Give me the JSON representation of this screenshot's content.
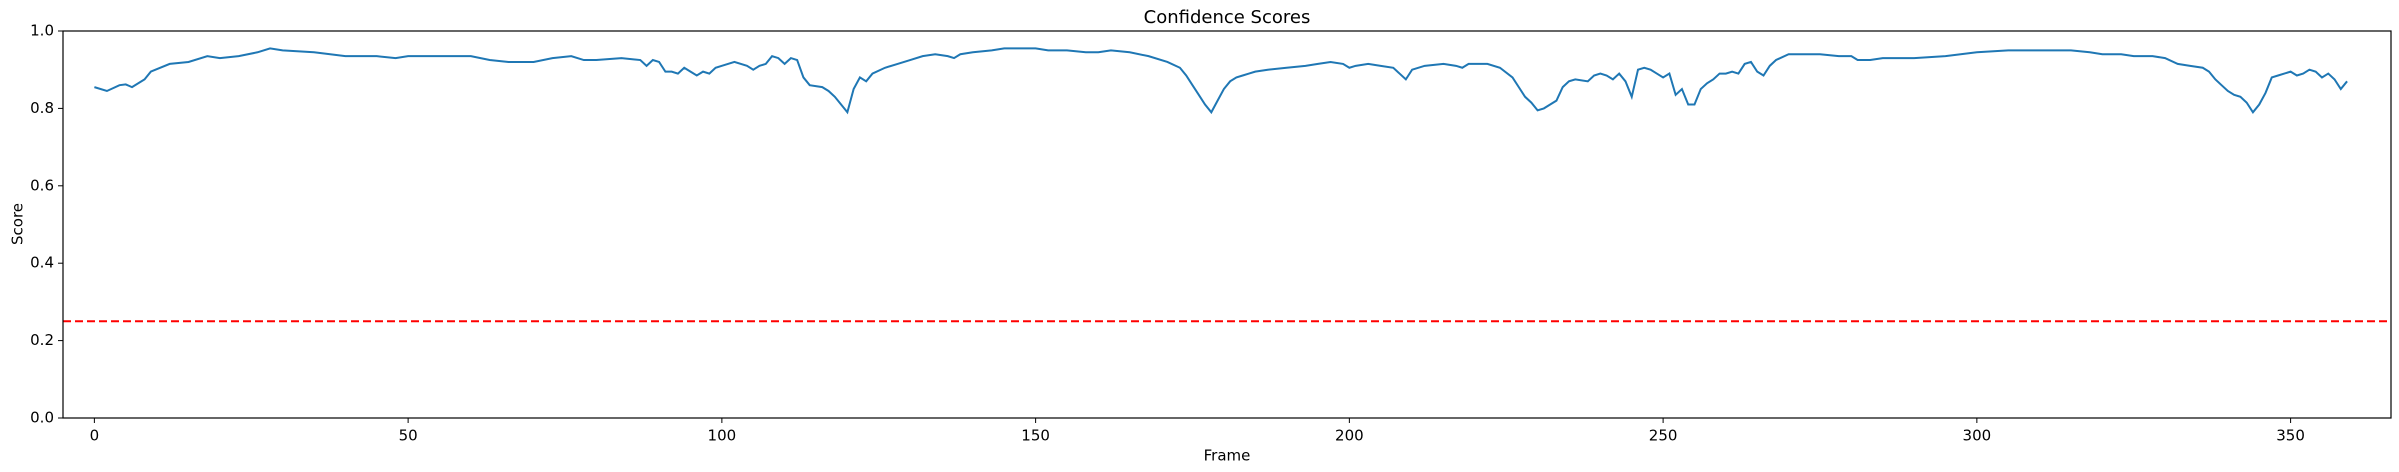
{
  "chart_data": {
    "type": "line",
    "title": "Confidence Scores",
    "x_label": "Frame",
    "y_label": "Score",
    "x": [
      0,
      2,
      4,
      5,
      6,
      8,
      9,
      12,
      15,
      18,
      20,
      23,
      26,
      28,
      30,
      35,
      40,
      45,
      48,
      50,
      55,
      60,
      63,
      66,
      70,
      73,
      76,
      78,
      80,
      84,
      87,
      88,
      89,
      90,
      91,
      92,
      93,
      94,
      95,
      96,
      97,
      98,
      99,
      100,
      102,
      104,
      105,
      106,
      107,
      108,
      109,
      110,
      111,
      112,
      113,
      114,
      116,
      117,
      118,
      119,
      120,
      121,
      122,
      123,
      124,
      126,
      128,
      130,
      132,
      134,
      136,
      137,
      138,
      140,
      143,
      145,
      148,
      150,
      152,
      155,
      158,
      160,
      162,
      165,
      168,
      171,
      173,
      174,
      175,
      176,
      177,
      178,
      179,
      180,
      181,
      182,
      183,
      184,
      185,
      187,
      190,
      193,
      195,
      197,
      199,
      200,
      201,
      203,
      205,
      207,
      208,
      209,
      210,
      212,
      215,
      217,
      218,
      219,
      222,
      224,
      226,
      227,
      228,
      229,
      230,
      231,
      232,
      233,
      234,
      235,
      236,
      238,
      239,
      240,
      241,
      242,
      243,
      244,
      245,
      246,
      247,
      248,
      249,
      250,
      251,
      252,
      253,
      254,
      255,
      256,
      257,
      258,
      259,
      260,
      261,
      262,
      263,
      264,
      265,
      266,
      267,
      268,
      270,
      272,
      275,
      278,
      280,
      281,
      283,
      285,
      290,
      295,
      300,
      305,
      310,
      315,
      318,
      320,
      323,
      325,
      328,
      330,
      332,
      334,
      336,
      337,
      338,
      339,
      340,
      341,
      342,
      343,
      344,
      345,
      346,
      347,
      348,
      349,
      350,
      351,
      352,
      353,
      354,
      355,
      356,
      357,
      358,
      359
    ],
    "series": [
      {
        "color": "#1f77b4",
        "values": [
          0.855,
          0.845,
          0.86,
          0.862,
          0.855,
          0.875,
          0.895,
          0.915,
          0.92,
          0.935,
          0.93,
          0.935,
          0.945,
          0.955,
          0.95,
          0.945,
          0.935,
          0.935,
          0.93,
          0.935,
          0.935,
          0.935,
          0.925,
          0.92,
          0.92,
          0.93,
          0.935,
          0.925,
          0.925,
          0.93,
          0.925,
          0.91,
          0.925,
          0.92,
          0.895,
          0.895,
          0.89,
          0.905,
          0.895,
          0.885,
          0.895,
          0.89,
          0.905,
          0.91,
          0.92,
          0.91,
          0.9,
          0.91,
          0.915,
          0.935,
          0.93,
          0.915,
          0.93,
          0.925,
          0.88,
          0.86,
          0.855,
          0.845,
          0.83,
          0.81,
          0.79,
          0.85,
          0.88,
          0.87,
          0.89,
          0.905,
          0.915,
          0.925,
          0.935,
          0.94,
          0.935,
          0.93,
          0.94,
          0.945,
          0.95,
          0.955,
          0.955,
          0.955,
          0.95,
          0.95,
          0.945,
          0.945,
          0.95,
          0.945,
          0.935,
          0.92,
          0.905,
          0.885,
          0.86,
          0.835,
          0.81,
          0.79,
          0.82,
          0.85,
          0.87,
          0.88,
          0.885,
          0.89,
          0.895,
          0.9,
          0.905,
          0.91,
          0.915,
          0.92,
          0.915,
          0.905,
          0.91,
          0.915,
          0.91,
          0.905,
          0.89,
          0.875,
          0.9,
          0.91,
          0.915,
          0.91,
          0.905,
          0.915,
          0.915,
          0.905,
          0.88,
          0.855,
          0.83,
          0.815,
          0.795,
          0.8,
          0.81,
          0.82,
          0.855,
          0.87,
          0.875,
          0.87,
          0.885,
          0.89,
          0.885,
          0.875,
          0.89,
          0.87,
          0.83,
          0.9,
          0.905,
          0.9,
          0.89,
          0.88,
          0.89,
          0.835,
          0.85,
          0.81,
          0.81,
          0.85,
          0.865,
          0.875,
          0.89,
          0.89,
          0.895,
          0.89,
          0.915,
          0.92,
          0.895,
          0.885,
          0.91,
          0.925,
          0.94,
          0.94,
          0.94,
          0.935,
          0.935,
          0.925,
          0.925,
          0.93,
          0.93,
          0.935,
          0.945,
          0.95,
          0.95,
          0.95,
          0.945,
          0.94,
          0.94,
          0.935,
          0.935,
          0.93,
          0.915,
          0.91,
          0.905,
          0.895,
          0.875,
          0.86,
          0.845,
          0.835,
          0.83,
          0.815,
          0.79,
          0.81,
          0.84,
          0.88,
          0.885,
          0.89,
          0.895,
          0.885,
          0.89,
          0.9,
          0.895,
          0.88,
          0.89,
          0.875,
          0.85,
          0.87
        ]
      }
    ],
    "threshold": {
      "value": 0.25,
      "color": "#ff0000"
    },
    "xlim": [
      -5,
      366
    ],
    "xticks": [
      0,
      50,
      100,
      150,
      200,
      250,
      300,
      350
    ],
    "ylim": [
      0,
      1
    ],
    "yticks": [
      {
        "value": 0,
        "label": "0.0"
      },
      {
        "value": 0.2,
        "label": "0.2"
      },
      {
        "value": 0.4,
        "label": "0.4"
      },
      {
        "value": 0.6,
        "label": "0.6"
      },
      {
        "value": 0.8,
        "label": "0.8"
      },
      {
        "value": 1,
        "label": "1.0"
      }
    ]
  }
}
